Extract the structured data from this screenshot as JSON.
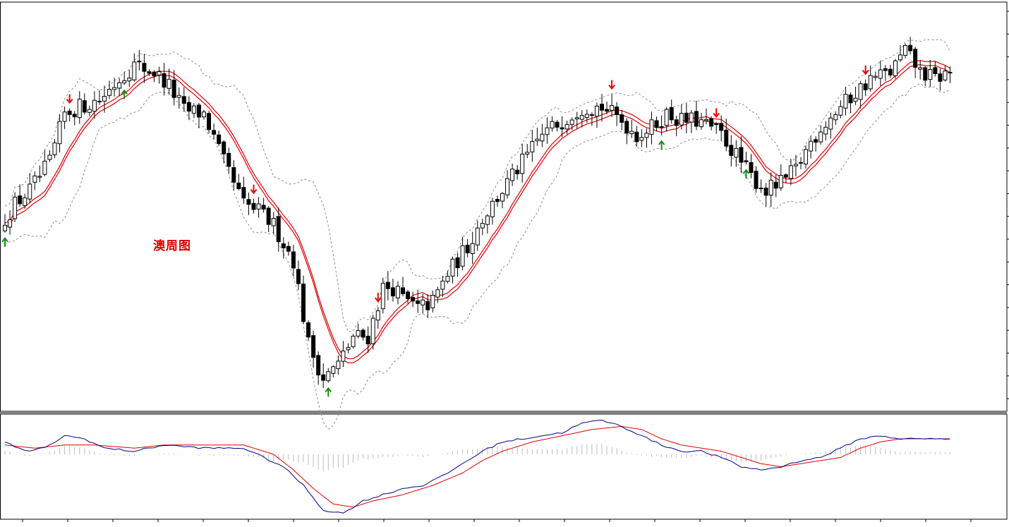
{
  "caption": "澳周图",
  "colors": {
    "background": "#ffffff",
    "frame": "#000000",
    "candle": "#000000",
    "moving_average": "#e00000",
    "bands": "#8c8c8c",
    "sell_arrow": "#ee0000",
    "buy_arrow": "#1a8a1a",
    "macd_line": "#00008b",
    "signal_line": "#e00000",
    "histogram": "#bdbdbd"
  },
  "chart_data": [
    {
      "type": "candlestick",
      "title": "",
      "xlabel": "",
      "ylabel": "",
      "price_range": [
        0,
        100
      ],
      "legend": "none",
      "grid": false,
      "price_path": [
        [
          0,
          44
        ],
        [
          2,
          48
        ],
        [
          5,
          52
        ],
        [
          9,
          60
        ],
        [
          12,
          74
        ],
        [
          15,
          76
        ],
        [
          19,
          78
        ],
        [
          23,
          84
        ],
        [
          26,
          88
        ],
        [
          30,
          86
        ],
        [
          33,
          82
        ],
        [
          36,
          75
        ],
        [
          40,
          74
        ],
        [
          44,
          60
        ],
        [
          48,
          48
        ],
        [
          51,
          46
        ],
        [
          54,
          42
        ],
        [
          58,
          32
        ],
        [
          61,
          8
        ],
        [
          64,
          -2
        ],
        [
          67,
          2
        ],
        [
          70,
          10
        ],
        [
          73,
          10
        ],
        [
          76,
          24
        ],
        [
          78,
          24
        ],
        [
          80,
          21
        ],
        [
          83,
          18
        ],
        [
          86,
          20
        ],
        [
          89,
          28
        ],
        [
          93,
          36
        ],
        [
          96,
          44
        ],
        [
          100,
          52
        ],
        [
          104,
          60
        ],
        [
          108,
          68
        ],
        [
          112,
          72
        ],
        [
          116,
          76
        ],
        [
          120,
          76
        ],
        [
          124,
          72
        ],
        [
          127,
          68
        ],
        [
          130,
          70
        ],
        [
          133,
          74
        ],
        [
          136,
          72
        ],
        [
          139,
          72
        ],
        [
          142,
          70
        ],
        [
          144,
          68
        ],
        [
          147,
          62
        ],
        [
          150,
          56
        ],
        [
          153,
          52
        ],
        [
          156,
          54
        ],
        [
          159,
          58
        ],
        [
          162,
          66
        ],
        [
          164,
          70
        ],
        [
          168,
          76
        ],
        [
          171,
          80
        ],
        [
          174,
          84
        ],
        [
          178,
          86
        ],
        [
          181,
          92
        ],
        [
          184,
          86
        ],
        [
          187,
          84
        ],
        [
          190,
          86
        ]
      ],
      "sell_signal_bars": [
        13,
        50,
        75,
        122,
        143,
        173
      ],
      "buy_signal_bars": [
        0,
        24,
        65,
        132,
        149
      ]
    },
    {
      "type": "macd",
      "title": "",
      "macd_path": [
        [
          0,
          8
        ],
        [
          4,
          2
        ],
        [
          8,
          4
        ],
        [
          12,
          12
        ],
        [
          16,
          10
        ],
        [
          20,
          4
        ],
        [
          26,
          2
        ],
        [
          32,
          6
        ],
        [
          40,
          4
        ],
        [
          48,
          4
        ],
        [
          52,
          -2
        ],
        [
          56,
          -8
        ],
        [
          60,
          -20
        ],
        [
          64,
          -36
        ],
        [
          68,
          -38
        ],
        [
          72,
          -30
        ],
        [
          76,
          -26
        ],
        [
          80,
          -22
        ],
        [
          84,
          -20
        ],
        [
          88,
          -14
        ],
        [
          92,
          -6
        ],
        [
          96,
          2
        ],
        [
          100,
          8
        ],
        [
          108,
          12
        ],
        [
          112,
          14
        ],
        [
          116,
          20
        ],
        [
          120,
          22
        ],
        [
          124,
          18
        ],
        [
          128,
          12
        ],
        [
          132,
          6
        ],
        [
          136,
          2
        ],
        [
          140,
          2
        ],
        [
          144,
          -2
        ],
        [
          148,
          -8
        ],
        [
          152,
          -10
        ],
        [
          156,
          -8
        ],
        [
          160,
          -4
        ],
        [
          164,
          -2
        ],
        [
          168,
          4
        ],
        [
          172,
          10
        ],
        [
          176,
          12
        ],
        [
          180,
          10
        ],
        [
          190,
          10
        ]
      ],
      "signal_path": [
        [
          0,
          6
        ],
        [
          6,
          4
        ],
        [
          12,
          6
        ],
        [
          18,
          6
        ],
        [
          26,
          4
        ],
        [
          32,
          6
        ],
        [
          40,
          6
        ],
        [
          48,
          6
        ],
        [
          54,
          0
        ],
        [
          58,
          -10
        ],
        [
          62,
          -22
        ],
        [
          66,
          -32
        ],
        [
          70,
          -34
        ],
        [
          74,
          -30
        ],
        [
          80,
          -26
        ],
        [
          86,
          -20
        ],
        [
          92,
          -12
        ],
        [
          96,
          -4
        ],
        [
          100,
          2
        ],
        [
          106,
          8
        ],
        [
          112,
          12
        ],
        [
          118,
          16
        ],
        [
          124,
          18
        ],
        [
          128,
          16
        ],
        [
          132,
          10
        ],
        [
          136,
          6
        ],
        [
          140,
          4
        ],
        [
          144,
          2
        ],
        [
          148,
          -2
        ],
        [
          152,
          -6
        ],
        [
          156,
          -8
        ],
        [
          160,
          -6
        ],
        [
          164,
          -4
        ],
        [
          168,
          -2
        ],
        [
          172,
          4
        ],
        [
          176,
          8
        ],
        [
          180,
          10
        ],
        [
          190,
          10
        ]
      ]
    }
  ]
}
